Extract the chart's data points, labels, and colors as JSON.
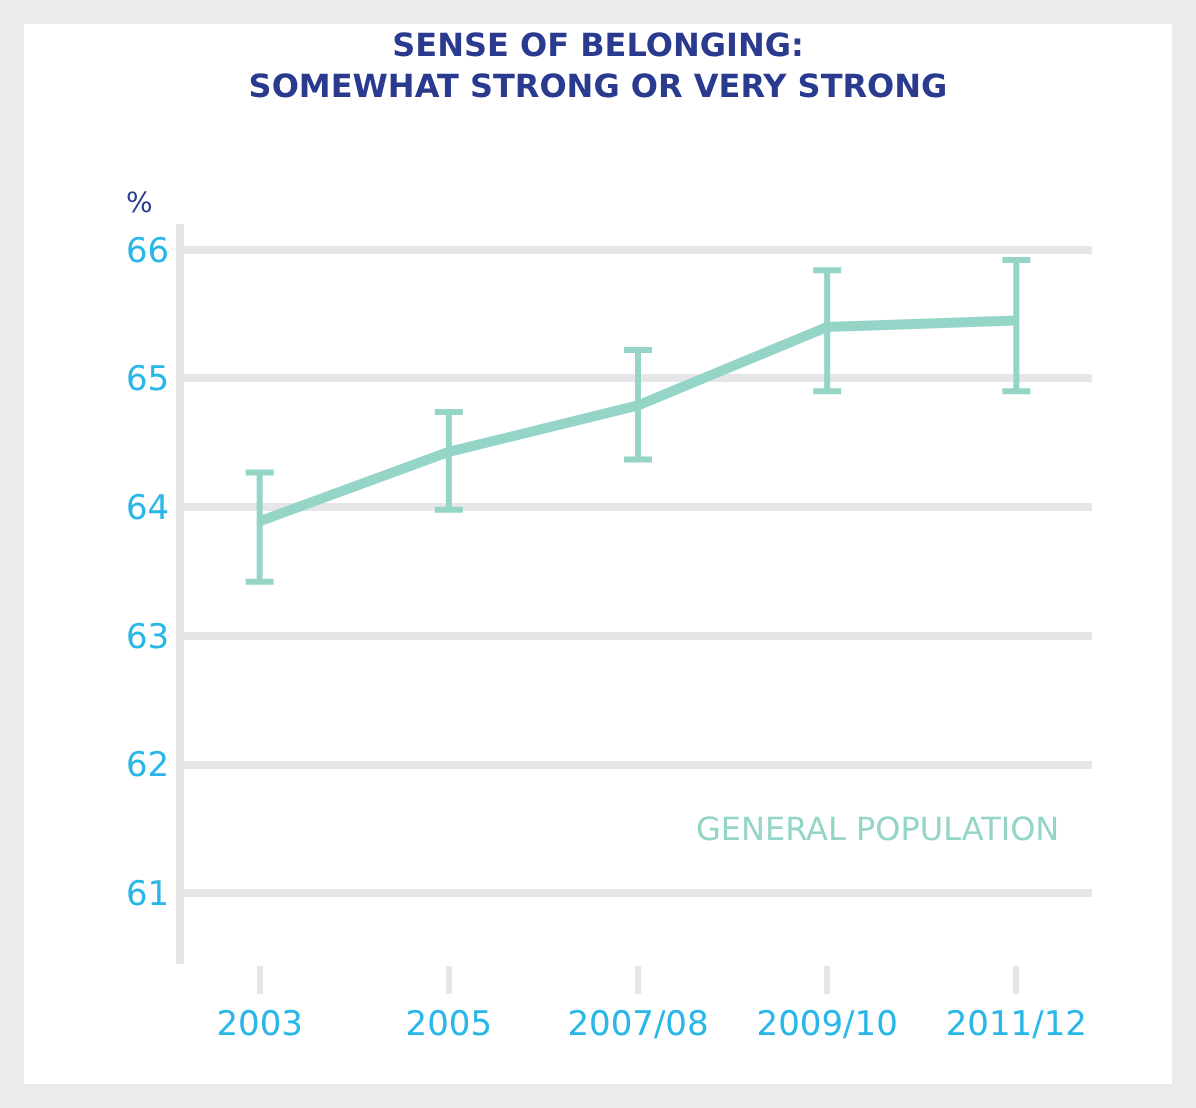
{
  "chart_data": {
    "type": "line",
    "title": "SENSE OF BELONGING:\nSOMEWHAT STRONG OR VERY STRONG",
    "ylabel": "%",
    "categories": [
      "2003",
      "2005",
      "2007/08",
      "2009/10",
      "2011/12"
    ],
    "series": [
      {
        "name": "GENERAL POPULATION",
        "color": "#94d5c8",
        "values": [
          63.89,
          64.43,
          64.79,
          65.4,
          65.45
        ],
        "errors": [
          [
            63.42,
            64.27
          ],
          [
            63.98,
            64.74
          ],
          [
            64.37,
            65.22
          ],
          [
            64.9,
            65.84
          ],
          [
            64.9,
            65.92
          ]
        ]
      }
    ],
    "ylim": [
      60.45,
      66.2
    ],
    "yticks": [
      61,
      62,
      63,
      64,
      65,
      66
    ],
    "grid": "y",
    "legend": false,
    "marker": "none",
    "line_style": "solid"
  }
}
